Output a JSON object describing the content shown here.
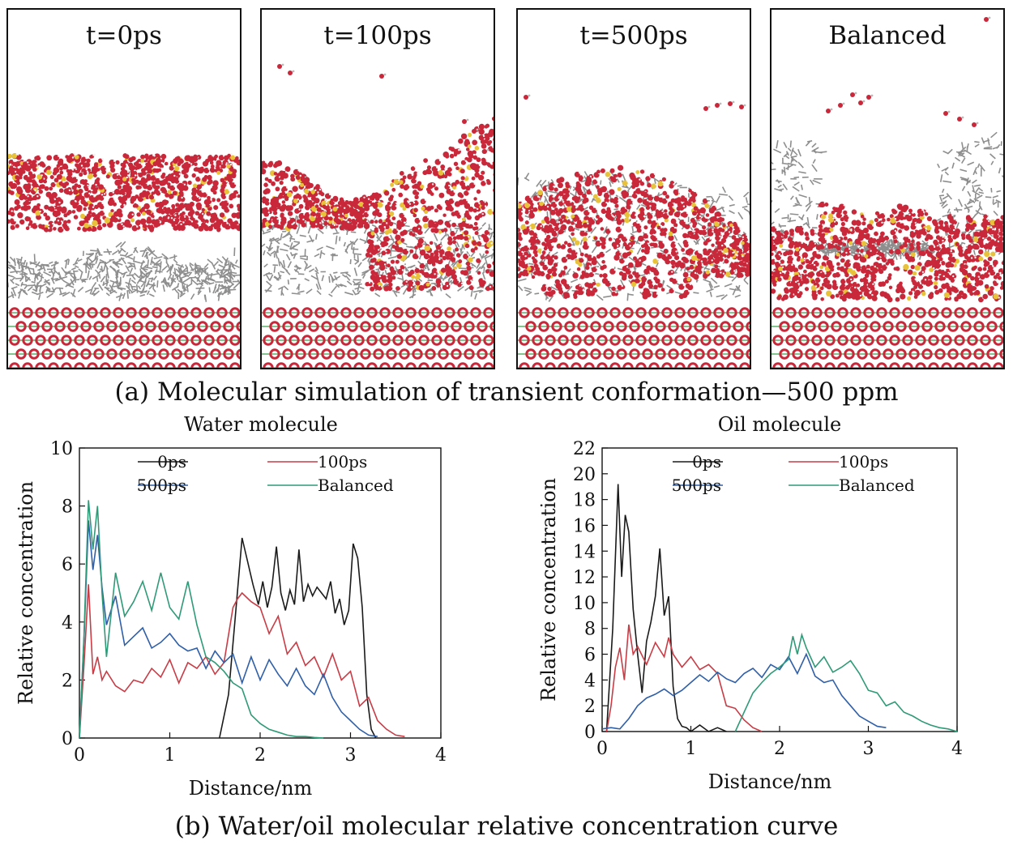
{
  "panels": [
    {
      "label": "t=0ps",
      "state": "initial"
    },
    {
      "label": "t=100ps",
      "state": "100ps"
    },
    {
      "label": "t=500ps",
      "state": "500ps"
    },
    {
      "label": "Balanced",
      "state": "balanced"
    }
  ],
  "caption_a": "(a) Molecular simulation of transient conformation—500 ppm",
  "caption_b": "(b) Water/oil molecular relative concentration curve",
  "colors": {
    "water": "#c8283a",
    "oil": "#8e8e8e",
    "substrate_green": "#3aa04a",
    "series_0ps": "#1a1a1a",
    "series_100ps": "#c83c46",
    "series_500ps": "#2f5fa8",
    "series_balanced": "#2f9a78"
  },
  "chart_data": [
    {
      "type": "line",
      "title": "Water molecule",
      "xlabel": "Distance/nm",
      "ylabel": "Relative concentration",
      "xlim": [
        0,
        4
      ],
      "ylim": [
        0,
        10
      ],
      "xticks": [
        0,
        1,
        2,
        3,
        4
      ],
      "yticks": [
        0,
        2,
        4,
        6,
        8,
        10
      ],
      "legend": "top",
      "series": [
        {
          "name": "0ps",
          "x": [
            1.55,
            1.65,
            1.72,
            1.8,
            1.86,
            1.92,
            1.98,
            2.03,
            2.08,
            2.13,
            2.18,
            2.23,
            2.28,
            2.33,
            2.38,
            2.43,
            2.48,
            2.53,
            2.58,
            2.63,
            2.68,
            2.73,
            2.78,
            2.83,
            2.88,
            2.93,
            2.98,
            3.03,
            3.08,
            3.13,
            3.18,
            3.23,
            3.28
          ],
          "y": [
            0,
            1.5,
            4.0,
            6.9,
            6.1,
            5.3,
            4.6,
            5.4,
            4.5,
            5.2,
            6.6,
            5.0,
            4.4,
            5.1,
            4.6,
            6.5,
            4.7,
            5.3,
            4.9,
            5.2,
            5.0,
            4.8,
            5.4,
            4.3,
            4.8,
            3.9,
            4.4,
            6.7,
            6.2,
            4.5,
            1.5,
            0.3,
            0
          ]
        },
        {
          "name": "100ps",
          "x": [
            0.0,
            0.05,
            0.1,
            0.15,
            0.2,
            0.25,
            0.3,
            0.4,
            0.5,
            0.6,
            0.7,
            0.8,
            0.9,
            1.0,
            1.1,
            1.2,
            1.3,
            1.4,
            1.5,
            1.6,
            1.7,
            1.75,
            1.8,
            1.9,
            2.0,
            2.1,
            2.2,
            2.3,
            2.4,
            2.5,
            2.6,
            2.7,
            2.8,
            2.9,
            3.0,
            3.1,
            3.2,
            3.3,
            3.4,
            3.5,
            3.6
          ],
          "y": [
            0,
            2.5,
            5.3,
            2.2,
            2.8,
            2.0,
            2.3,
            1.8,
            1.6,
            2.0,
            1.9,
            2.4,
            2.1,
            2.7,
            1.9,
            2.6,
            2.4,
            2.8,
            2.2,
            2.6,
            4.5,
            4.8,
            5.0,
            4.7,
            4.5,
            3.6,
            4.2,
            2.9,
            3.3,
            2.5,
            2.8,
            2.1,
            2.9,
            2.0,
            2.3,
            1.1,
            1.4,
            0.6,
            0.3,
            0.1,
            0.05
          ]
        },
        {
          "name": "500ps",
          "x": [
            0.0,
            0.05,
            0.1,
            0.15,
            0.2,
            0.25,
            0.3,
            0.4,
            0.5,
            0.6,
            0.7,
            0.8,
            0.9,
            1.0,
            1.1,
            1.2,
            1.3,
            1.4,
            1.5,
            1.6,
            1.7,
            1.8,
            1.9,
            2.0,
            2.1,
            2.2,
            2.3,
            2.4,
            2.5,
            2.6,
            2.7,
            2.8,
            2.9,
            3.0,
            3.1,
            3.2,
            3.3
          ],
          "y": [
            0,
            3.4,
            7.5,
            5.8,
            7.0,
            5.2,
            3.9,
            4.9,
            3.2,
            3.5,
            3.8,
            3.1,
            3.3,
            3.6,
            3.2,
            3.0,
            3.1,
            2.4,
            3.0,
            2.6,
            2.9,
            1.9,
            2.8,
            2.0,
            2.7,
            2.2,
            1.8,
            2.4,
            1.8,
            1.5,
            2.2,
            1.4,
            0.9,
            0.6,
            0.3,
            0.1,
            0.05
          ]
        },
        {
          "name": "Balanced",
          "x": [
            0.0,
            0.05,
            0.1,
            0.15,
            0.2,
            0.25,
            0.3,
            0.4,
            0.5,
            0.6,
            0.7,
            0.8,
            0.9,
            1.0,
            1.1,
            1.2,
            1.3,
            1.4,
            1.5,
            1.6,
            1.7,
            1.8,
            1.9,
            2.0,
            2.1,
            2.2,
            2.3,
            2.4,
            2.5,
            2.6,
            2.7
          ],
          "y": [
            0,
            3.5,
            8.2,
            6.5,
            8.0,
            5.0,
            2.8,
            5.7,
            4.2,
            4.7,
            5.4,
            4.4,
            5.7,
            4.5,
            4.1,
            5.4,
            3.9,
            2.8,
            2.6,
            2.3,
            1.9,
            1.7,
            0.8,
            0.5,
            0.3,
            0.2,
            0.1,
            0.05,
            0.05,
            0.02,
            0
          ]
        }
      ]
    },
    {
      "type": "line",
      "title": "Oil molecule",
      "xlabel": "Distance/nm",
      "ylabel": "Relative concentration",
      "xlim": [
        0,
        4
      ],
      "ylim": [
        0,
        22
      ],
      "xticks": [
        0,
        1,
        2,
        3,
        4
      ],
      "yticks": [
        0,
        2,
        4,
        6,
        8,
        10,
        12,
        14,
        16,
        18,
        20,
        22
      ],
      "legend": "top",
      "series": [
        {
          "name": "0ps",
          "x": [
            0.05,
            0.12,
            0.18,
            0.22,
            0.26,
            0.3,
            0.35,
            0.4,
            0.45,
            0.5,
            0.55,
            0.6,
            0.65,
            0.7,
            0.75,
            0.8,
            0.85,
            0.9,
            0.95,
            1.0,
            1.1,
            1.2,
            1.3,
            1.4
          ],
          "y": [
            0,
            8.0,
            19.2,
            12.0,
            16.8,
            15.5,
            9.5,
            6.0,
            3.0,
            7.0,
            8.5,
            10.5,
            14.2,
            9.0,
            10.5,
            3.5,
            1.0,
            0.4,
            0.3,
            0.0,
            0.5,
            0.0,
            0.3,
            0.0
          ]
        },
        {
          "name": "100ps",
          "x": [
            0.05,
            0.1,
            0.15,
            0.2,
            0.25,
            0.3,
            0.35,
            0.4,
            0.5,
            0.6,
            0.7,
            0.75,
            0.8,
            0.9,
            1.0,
            1.1,
            1.2,
            1.3,
            1.4,
            1.5,
            1.6,
            1.7,
            1.8
          ],
          "y": [
            0,
            2.0,
            5.0,
            6.5,
            4.0,
            8.3,
            6.0,
            6.6,
            5.2,
            6.9,
            5.8,
            7.3,
            6.0,
            5.0,
            5.8,
            4.8,
            5.2,
            4.5,
            2.0,
            1.8,
            0.9,
            0.3,
            0.0
          ]
        },
        {
          "name": "500ps",
          "x": [
            0.0,
            0.1,
            0.2,
            0.3,
            0.4,
            0.5,
            0.6,
            0.7,
            0.8,
            0.9,
            1.0,
            1.1,
            1.2,
            1.3,
            1.4,
            1.5,
            1.6,
            1.7,
            1.8,
            1.9,
            2.0,
            2.1,
            2.2,
            2.3,
            2.4,
            2.5,
            2.6,
            2.7,
            2.8,
            2.9,
            3.0,
            3.1,
            3.2
          ],
          "y": [
            0.2,
            0.3,
            0.2,
            1.0,
            2.0,
            2.6,
            2.9,
            3.3,
            2.8,
            3.2,
            3.8,
            4.4,
            3.9,
            4.6,
            4.1,
            3.8,
            4.5,
            4.9,
            4.2,
            5.2,
            4.8,
            5.8,
            4.5,
            6.0,
            4.3,
            3.8,
            4.0,
            2.8,
            2.0,
            1.2,
            0.8,
            0.4,
            0.3
          ]
        },
        {
          "name": "Balanced",
          "x": [
            1.5,
            1.6,
            1.7,
            1.8,
            1.9,
            2.0,
            2.1,
            2.15,
            2.2,
            2.25,
            2.3,
            2.4,
            2.5,
            2.6,
            2.7,
            2.8,
            2.9,
            3.0,
            3.1,
            3.2,
            3.3,
            3.4,
            3.5,
            3.6,
            3.7,
            3.8,
            3.9,
            4.0
          ],
          "y": [
            0,
            1.5,
            3.0,
            3.8,
            4.5,
            5.0,
            5.6,
            7.4,
            6.0,
            7.5,
            6.5,
            5.0,
            5.8,
            4.6,
            5.0,
            5.5,
            4.5,
            3.2,
            3.0,
            2.0,
            2.3,
            1.5,
            1.2,
            0.8,
            0.5,
            0.3,
            0.2,
            0.0
          ]
        }
      ]
    }
  ]
}
